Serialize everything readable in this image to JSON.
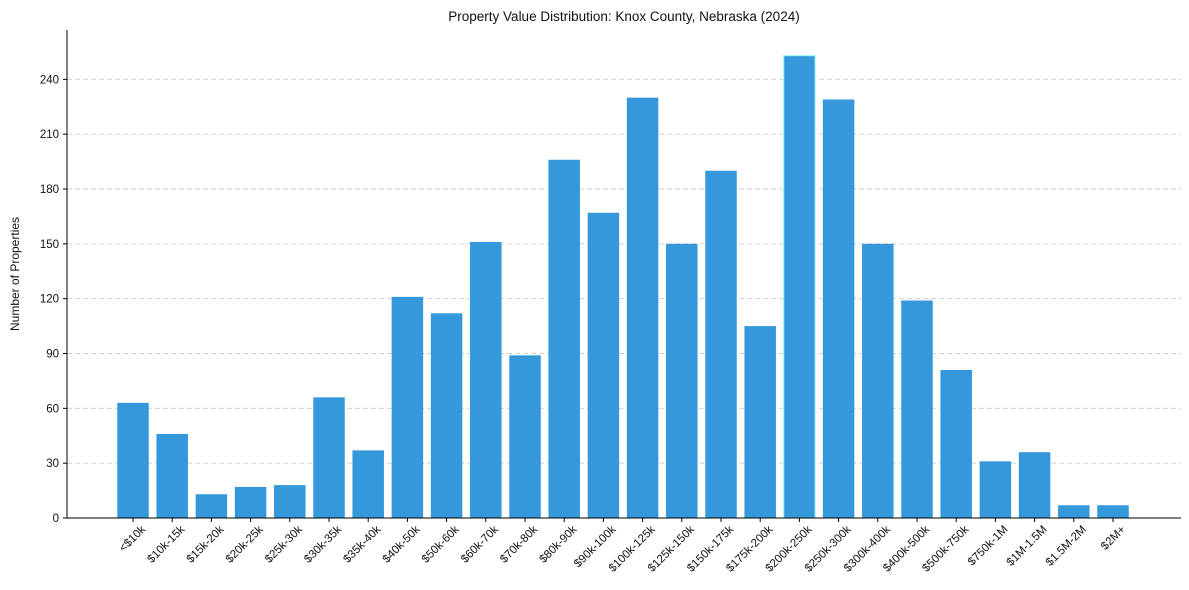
{
  "chart_data": {
    "type": "bar",
    "title": "Property Value Distribution: Knox County, Nebraska (2024)",
    "xlabel": "",
    "ylabel": "Number of Properties",
    "ylim": [
      0,
      267
    ],
    "yticks": [
      0,
      30,
      60,
      90,
      120,
      150,
      180,
      210,
      240
    ],
    "grid": "y-dashed",
    "colors": {
      "bar": "#3498db",
      "highlight_edge": "#9ff7f7",
      "grid": "#cccccc",
      "axis": "#000000"
    },
    "categories": [
      "<$10k",
      "$10k-15k",
      "$15k-20k",
      "$20k-25k",
      "$25k-30k",
      "$30k-35k",
      "$35k-40k",
      "$40k-50k",
      "$50k-60k",
      "$60k-70k",
      "$70k-80k",
      "$80k-90k",
      "$90k-100k",
      "$100k-125k",
      "$125k-150k",
      "$150k-175k",
      "$175k-200k",
      "$200k-250k",
      "$250k-300k",
      "$300k-400k",
      "$400k-500k",
      "$500k-750k",
      "$750k-1M",
      "$1M-1.5M",
      "$1.5M-2M",
      "$2M+"
    ],
    "values": [
      63,
      46,
      13,
      17,
      18,
      66,
      37,
      121,
      112,
      151,
      89,
      196,
      167,
      230,
      150,
      190,
      105,
      253,
      229,
      150,
      119,
      81,
      31,
      36,
      7,
      7
    ],
    "highlight_category": "$200k-250k"
  }
}
